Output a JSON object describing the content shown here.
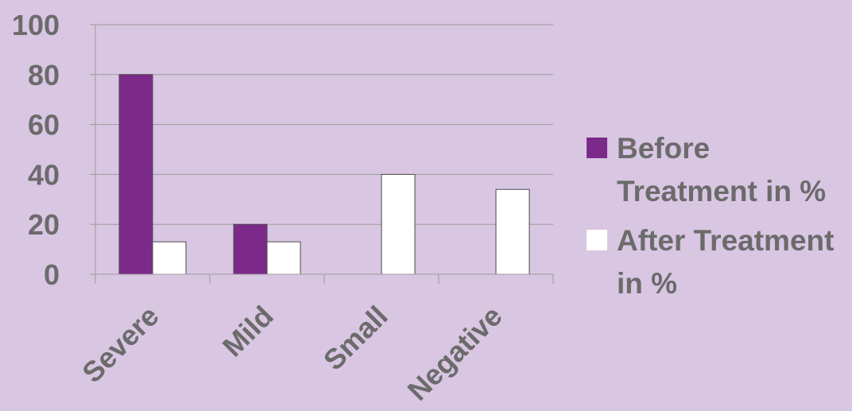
{
  "chart_data": {
    "type": "bar",
    "categories": [
      "Severe",
      "Mild",
      "Small",
      "Negative"
    ],
    "series": [
      {
        "name": "Before Treatment in %",
        "values": [
          80,
          20,
          0,
          0
        ],
        "color": "#7b2a8a"
      },
      {
        "name": "After Treatment in %",
        "values": [
          13,
          13,
          40,
          34
        ],
        "color": "#ffffff"
      }
    ],
    "y_ticks": [
      "0",
      "20",
      "40",
      "60",
      "80",
      "100"
    ],
    "ylim": [
      0,
      100
    ],
    "grid": true,
    "legend_position": "right",
    "colors": {
      "background": "#d9c6e3",
      "text": "#6b6b6b",
      "grid": "#9b9b9b"
    }
  }
}
